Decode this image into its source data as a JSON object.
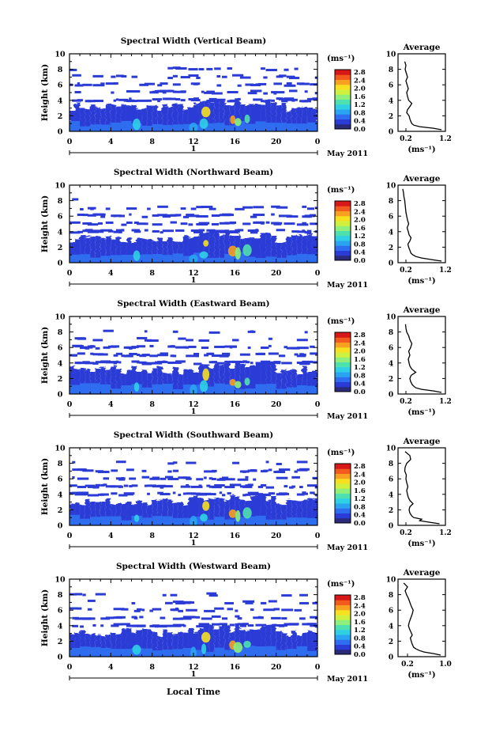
{
  "figure": {
    "xlabel": "Local Time",
    "date_label": "May 2011",
    "date_marker": "1",
    "average_title": "Average",
    "average_unit": "(ms⁻¹)",
    "colorbar_unit": "(ms⁻¹)"
  },
  "colorbar": {
    "ticks": [
      "2.8",
      "2.4",
      "2.0",
      "1.6",
      "1.2",
      "0.8",
      "0.4",
      "0.0"
    ],
    "colors": [
      "#2a2a7a",
      "#2b3bd6",
      "#2f6df0",
      "#2aa3f0",
      "#2fd0e6",
      "#4fe0b0",
      "#8ef07a",
      "#d0f040",
      "#f6e020",
      "#f8a020",
      "#f25a1e",
      "#d81818"
    ]
  },
  "chart_data": [
    {
      "type": "heatmap",
      "title": "Spectral Width (Vertical Beam)",
      "ylabel": "Height (km)",
      "x_ticks": [
        "0",
        "4",
        "8",
        "12",
        "16",
        "20",
        "0"
      ],
      "y_ticks": [
        "0",
        "2",
        "4",
        "6",
        "8",
        "10"
      ],
      "xlim": [
        0,
        24
      ],
      "ylim": [
        0,
        10
      ],
      "avg_xlim": [
        0.0,
        1.2
      ],
      "avg_xticks": [
        "0.2",
        "1.2"
      ],
      "average_profile": {
        "height": [
          0.2,
          0.4,
          0.6,
          0.8,
          1.0,
          1.2,
          1.6,
          2.0,
          2.4,
          2.8,
          3.2,
          3.6,
          4.0,
          4.5,
          5.0,
          5.5,
          6.0,
          6.5,
          7.0,
          7.5,
          8.0,
          8.5,
          9.0
        ],
        "width": [
          1.1,
          0.9,
          0.55,
          0.4,
          0.35,
          0.33,
          0.3,
          0.28,
          0.22,
          0.24,
          0.3,
          0.35,
          0.27,
          0.24,
          0.22,
          0.26,
          0.23,
          0.2,
          0.24,
          0.21,
          0.18,
          0.2,
          0.17
        ]
      }
    },
    {
      "type": "heatmap",
      "title": "Spectral Width (Northward Beam)",
      "ylabel": "Height (km)",
      "x_ticks": [
        "0",
        "4",
        "8",
        "12",
        "16",
        "20",
        "0"
      ],
      "y_ticks": [
        "0",
        "2",
        "4",
        "6",
        "8",
        "10"
      ],
      "xlim": [
        0,
        24
      ],
      "ylim": [
        0,
        10
      ],
      "avg_xlim": [
        0.0,
        1.2
      ],
      "avg_xticks": [
        "0.2",
        "1.2"
      ],
      "average_profile": {
        "height": [
          0.2,
          0.4,
          0.6,
          0.8,
          1.0,
          1.2,
          1.6,
          2.0,
          2.4,
          2.8,
          3.2,
          3.6,
          4.0,
          4.5,
          5.0,
          5.5,
          6.0,
          6.5,
          7.0,
          7.5,
          8.0,
          8.5,
          9.0,
          9.5
        ],
        "width": [
          1.1,
          0.85,
          0.6,
          0.45,
          0.38,
          0.33,
          0.3,
          0.27,
          0.25,
          0.3,
          0.33,
          0.28,
          0.26,
          0.23,
          0.27,
          0.24,
          0.22,
          0.2,
          0.19,
          0.18,
          0.17,
          0.15,
          0.14,
          0.12
        ]
      }
    },
    {
      "type": "heatmap",
      "title": "Spectral Width (Eastward Beam)",
      "ylabel": "Height (km)",
      "x_ticks": [
        "0",
        "4",
        "8",
        "12",
        "16",
        "20",
        "0"
      ],
      "y_ticks": [
        "0",
        "2",
        "4",
        "6",
        "8",
        "10"
      ],
      "xlim": [
        0,
        24
      ],
      "ylim": [
        0,
        10
      ],
      "avg_xlim": [
        0.0,
        1.2
      ],
      "avg_xticks": [
        "0.2",
        "1.2"
      ],
      "average_profile": {
        "height": [
          0.2,
          0.4,
          0.6,
          0.8,
          1.0,
          1.2,
          1.6,
          2.0,
          2.4,
          2.8,
          3.2,
          3.6,
          4.0,
          4.5,
          5.0,
          5.5,
          6.0,
          6.5,
          7.0,
          7.5,
          8.0,
          8.5,
          9.0
        ],
        "width": [
          1.1,
          0.9,
          0.6,
          0.45,
          0.4,
          0.36,
          0.32,
          0.3,
          0.33,
          0.45,
          0.35,
          0.3,
          0.28,
          0.26,
          0.3,
          0.27,
          0.32,
          0.35,
          0.3,
          0.27,
          0.22,
          0.2,
          0.19
        ]
      }
    },
    {
      "type": "heatmap",
      "title": "Spectral Width (Southward Beam)",
      "ylabel": "Height (km)",
      "x_ticks": [
        "0",
        "4",
        "8",
        "12",
        "16",
        "20",
        "0"
      ],
      "y_ticks": [
        "0",
        "2",
        "4",
        "6",
        "8",
        "10"
      ],
      "xlim": [
        0,
        24
      ],
      "ylim": [
        0,
        10
      ],
      "avg_xlim": [
        0.0,
        1.2
      ],
      "avg_xticks": [
        "0.2",
        "1.2"
      ],
      "average_profile": {
        "height": [
          0.2,
          0.4,
          0.6,
          0.8,
          1.0,
          1.2,
          1.6,
          2.0,
          2.4,
          2.8,
          3.2,
          3.6,
          4.0,
          4.5,
          5.0,
          5.5,
          6.0,
          6.5,
          7.0,
          7.5,
          8.0,
          8.5,
          9.0,
          9.5
        ],
        "width": [
          1.05,
          0.8,
          0.55,
          0.6,
          0.4,
          0.35,
          0.3,
          0.28,
          0.3,
          0.38,
          0.3,
          0.26,
          0.24,
          0.22,
          0.25,
          0.22,
          0.2,
          0.21,
          0.17,
          0.18,
          0.22,
          0.32,
          0.3,
          0.18
        ]
      }
    },
    {
      "type": "heatmap",
      "title": "Spectral Width (Westward Beam)",
      "ylabel": "Height (km)",
      "x_ticks": [
        "0",
        "4",
        "8",
        "12",
        "16",
        "20",
        "0"
      ],
      "y_ticks": [
        "0",
        "2",
        "4",
        "6",
        "8",
        "10"
      ],
      "xlim": [
        0,
        24
      ],
      "ylim": [
        0,
        10
      ],
      "avg_xlim": [
        0.0,
        1.0
      ],
      "avg_xticks": [
        "0.2",
        "1.0"
      ],
      "average_profile": {
        "height": [
          0.2,
          0.4,
          0.6,
          0.8,
          1.0,
          1.2,
          1.6,
          2.0,
          2.4,
          2.8,
          3.2,
          3.6,
          4.0,
          4.5,
          5.0,
          5.5,
          6.0,
          6.5,
          7.0,
          7.5,
          8.0,
          8.5,
          9.0,
          9.5
        ],
        "width": [
          0.9,
          0.75,
          0.55,
          0.45,
          0.38,
          0.33,
          0.3,
          0.28,
          0.26,
          0.3,
          0.27,
          0.24,
          0.22,
          0.24,
          0.27,
          0.3,
          0.32,
          0.28,
          0.25,
          0.22,
          0.18,
          0.15,
          0.2,
          0.12
        ]
      }
    }
  ]
}
